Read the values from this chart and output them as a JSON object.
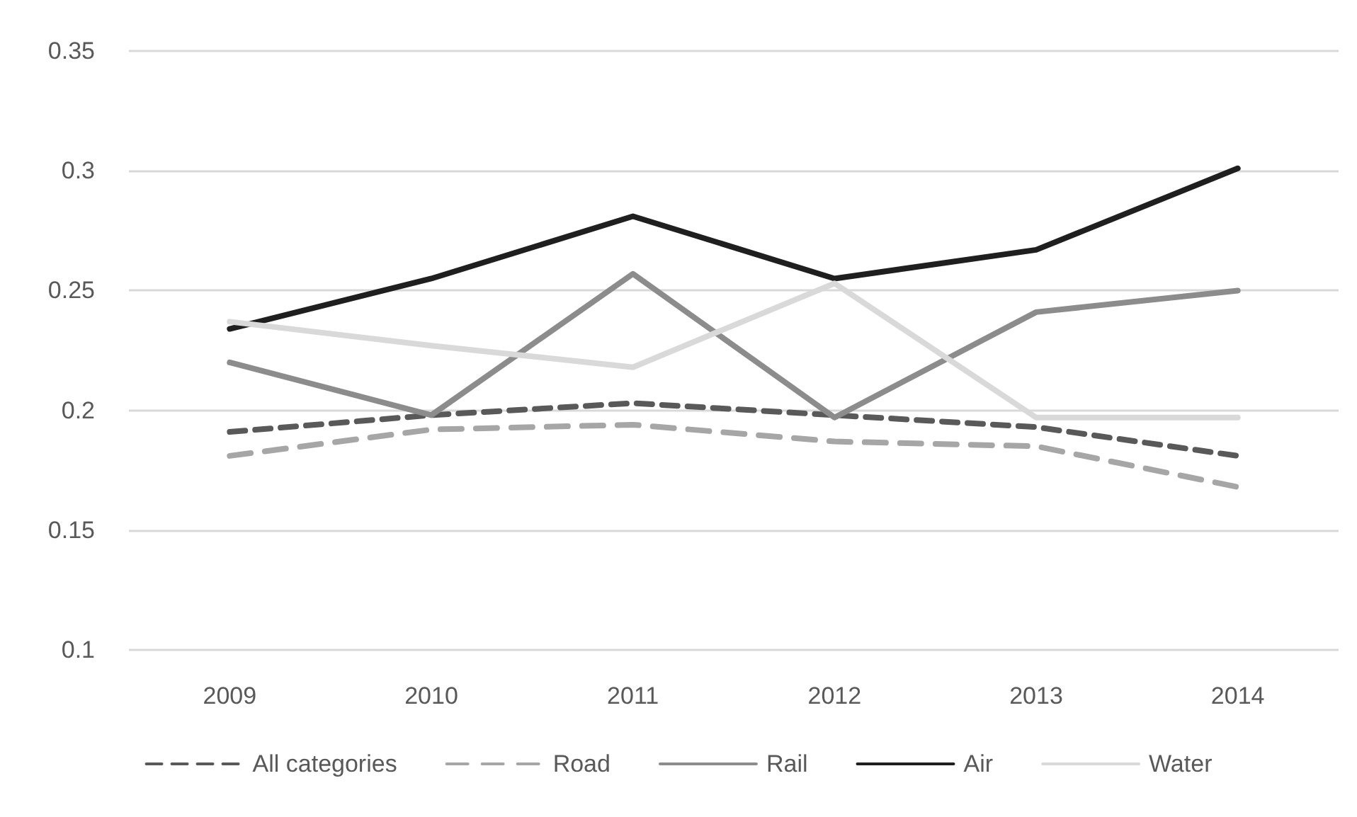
{
  "chart_data": {
    "type": "line",
    "categories": [
      "2009",
      "2010",
      "2011",
      "2012",
      "2013",
      "2014"
    ],
    "series": [
      {
        "name": "All categories",
        "color": "#595959",
        "line_style": "dashed",
        "values": [
          0.191,
          0.198,
          0.203,
          0.198,
          0.193,
          0.181
        ]
      },
      {
        "name": "Road",
        "color": "#a6a6a6",
        "line_style": "dashed",
        "values": [
          0.181,
          0.192,
          0.194,
          0.187,
          0.185,
          0.168
        ]
      },
      {
        "name": "Rail",
        "color": "#8c8c8c",
        "line_style": "solid",
        "values": [
          0.22,
          0.198,
          0.257,
          0.197,
          0.241,
          0.25
        ]
      },
      {
        "name": "Air",
        "color": "#1f1f1f",
        "line_style": "solid",
        "values": [
          0.234,
          0.255,
          0.281,
          0.255,
          0.267,
          0.301
        ]
      },
      {
        "name": "Water",
        "color": "#d9d9d9",
        "line_style": "solid",
        "values": [
          0.237,
          0.227,
          0.218,
          0.253,
          0.197,
          0.197
        ]
      }
    ],
    "ylim": [
      0.1,
      0.35
    ],
    "yticks": [
      0.1,
      0.15,
      0.2,
      0.25,
      0.3,
      0.35
    ],
    "grid": "y",
    "legend": "bottom",
    "marker": "none"
  }
}
